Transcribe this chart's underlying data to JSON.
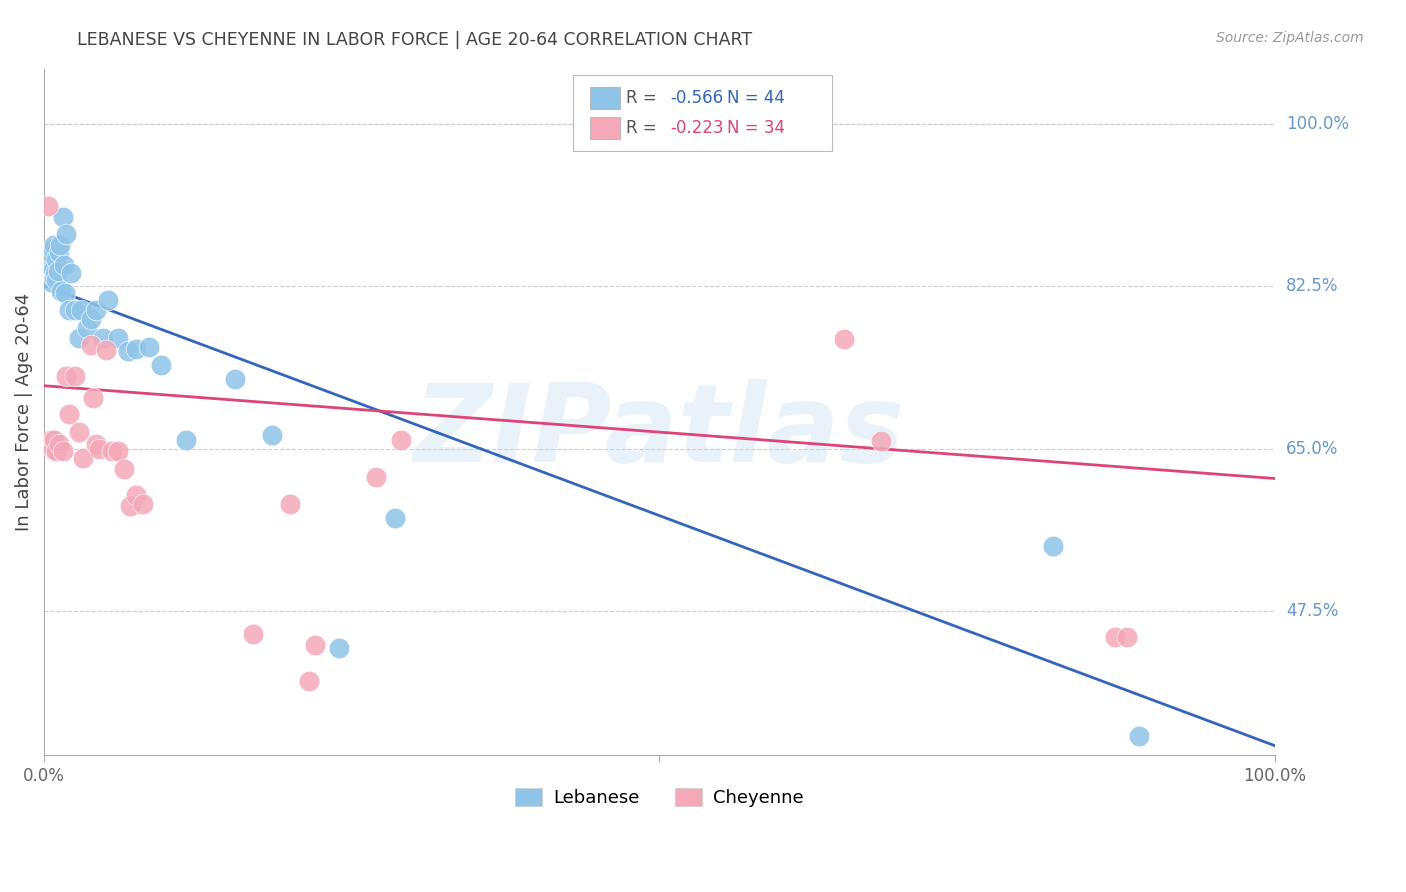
{
  "title": "LEBANESE VS CHEYENNE IN LABOR FORCE | AGE 20-64 CORRELATION CHART",
  "source": "Source: ZipAtlas.com",
  "ylabel": "In Labor Force | Age 20-64",
  "ytick_labels": [
    "100.0%",
    "82.5%",
    "65.0%",
    "47.5%"
  ],
  "ytick_values": [
    1.0,
    0.825,
    0.65,
    0.475
  ],
  "xlim": [
    0.0,
    1.0
  ],
  "ylim": [
    0.32,
    1.06
  ],
  "legend_blue_r": "-0.566",
  "legend_blue_n": "44",
  "legend_pink_r": "-0.223",
  "legend_pink_n": "34",
  "watermark": "ZIPatlas",
  "blue_color": "#8ec4e8",
  "pink_color": "#f4a8b8",
  "blue_line_color": "#3366bb",
  "pink_line_color": "#dd4477",
  "background_color": "#ffffff",
  "grid_color": "#cccccc",
  "right_label_color": "#6699cc",
  "title_color": "#444444",
  "blue_scatter_x": [
    0.002,
    0.003,
    0.004,
    0.005,
    0.006,
    0.006,
    0.007,
    0.007,
    0.007,
    0.008,
    0.008,
    0.009,
    0.01,
    0.01,
    0.011,
    0.012,
    0.013,
    0.014,
    0.015,
    0.016,
    0.017,
    0.018,
    0.02,
    0.022,
    0.025,
    0.028,
    0.03,
    0.035,
    0.038,
    0.042,
    0.048,
    0.052,
    0.06,
    0.068,
    0.075,
    0.085,
    0.095,
    0.115,
    0.155,
    0.185,
    0.24,
    0.285,
    0.82,
    0.89
  ],
  "blue_scatter_y": [
    0.855,
    0.84,
    0.845,
    0.85,
    0.845,
    0.83,
    0.858,
    0.865,
    0.843,
    0.835,
    0.87,
    0.84,
    0.855,
    0.832,
    0.842,
    0.862,
    0.87,
    0.82,
    0.9,
    0.848,
    0.818,
    0.882,
    0.8,
    0.84,
    0.8,
    0.77,
    0.8,
    0.78,
    0.79,
    0.8,
    0.77,
    0.81,
    0.77,
    0.755,
    0.758,
    0.76,
    0.74,
    0.66,
    0.725,
    0.665,
    0.435,
    0.575,
    0.545,
    0.34
  ],
  "pink_scatter_x": [
    0.003,
    0.005,
    0.006,
    0.007,
    0.008,
    0.01,
    0.012,
    0.015,
    0.018,
    0.02,
    0.025,
    0.028,
    0.032,
    0.038,
    0.04,
    0.042,
    0.045,
    0.05,
    0.055,
    0.06,
    0.065,
    0.07,
    0.075,
    0.08,
    0.17,
    0.2,
    0.215,
    0.22,
    0.27,
    0.29,
    0.65,
    0.68,
    0.87,
    0.88
  ],
  "pink_scatter_y": [
    0.912,
    0.655,
    0.66,
    0.65,
    0.66,
    0.648,
    0.655,
    0.648,
    0.728,
    0.688,
    0.728,
    0.668,
    0.64,
    0.762,
    0.705,
    0.655,
    0.65,
    0.756,
    0.648,
    0.648,
    0.628,
    0.588,
    0.6,
    0.59,
    0.45,
    0.59,
    0.4,
    0.438,
    0.62,
    0.66,
    0.768,
    0.658,
    0.447,
    0.447
  ],
  "blue_line_x0": 0.0,
  "blue_line_y0": 0.826,
  "blue_line_x1": 1.0,
  "blue_line_y1": 0.33,
  "pink_line_x0": 0.0,
  "pink_line_y0": 0.718,
  "pink_line_x1": 1.0,
  "pink_line_y1": 0.618
}
